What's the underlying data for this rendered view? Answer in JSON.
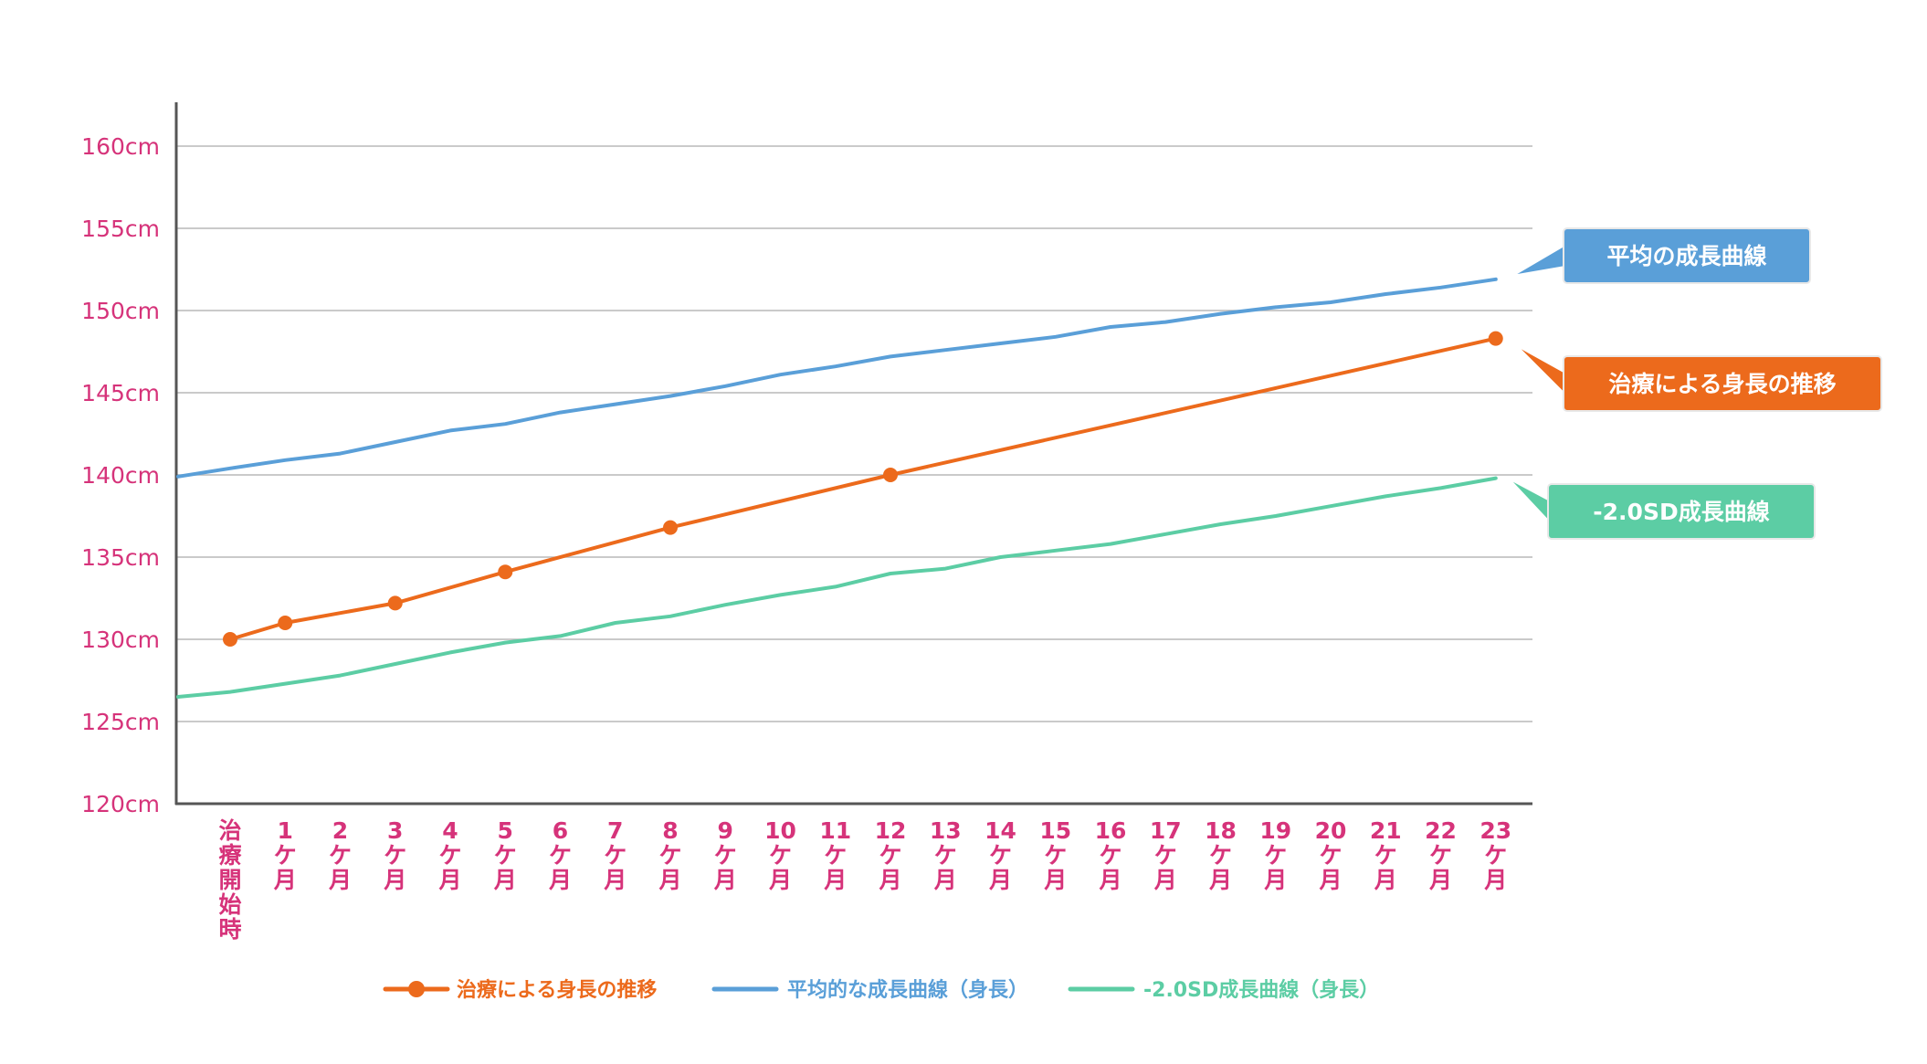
{
  "colors": {
    "treatment": "#ec6a1c",
    "average": "#5a9fd8",
    "sd": "#5ccda4",
    "tick_text": "#d6337a",
    "grid": "#b9b9b9",
    "axis": "#555555"
  },
  "chart_data": {
    "type": "line",
    "ylim": [
      120,
      160
    ],
    "y_ticks": [
      120,
      125,
      130,
      135,
      140,
      145,
      150,
      155,
      160
    ],
    "y_tick_labels": [
      "120cm",
      "125cm",
      "130cm",
      "135cm",
      "140cm",
      "145cm",
      "150cm",
      "155cm",
      "160cm"
    ],
    "x_labels": [
      "治療開始時",
      "1ケ月",
      "2ケ月",
      "3ケ月",
      "4ケ月",
      "5ケ月",
      "6ケ月",
      "7ケ月",
      "8ケ月",
      "9ケ月",
      "10ケ月",
      "11ケ月",
      "12ケ月",
      "13ケ月",
      "14ケ月",
      "15ケ月",
      "16ケ月",
      "17ケ月",
      "18ケ月",
      "19ケ月",
      "20ケ月",
      "21ケ月",
      "22ケ月",
      "23ケ月"
    ],
    "grid": true,
    "series": [
      {
        "name": "治療による身長の推移",
        "key": "treatment",
        "markers": true,
        "points": [
          [
            0,
            130.0
          ],
          [
            1,
            131.0
          ],
          [
            3,
            132.2
          ],
          [
            5,
            134.1
          ],
          [
            8,
            136.8
          ],
          [
            12,
            140.0
          ],
          [
            23,
            148.3
          ]
        ]
      },
      {
        "name": "平均的な成長曲線（身長）",
        "key": "average",
        "markers": false,
        "points": [
          [
            -1,
            139.9
          ],
          [
            0,
            140.4
          ],
          [
            1,
            140.9
          ],
          [
            2,
            141.3
          ],
          [
            3,
            142.0
          ],
          [
            4,
            142.7
          ],
          [
            5,
            143.1
          ],
          [
            6,
            143.8
          ],
          [
            7,
            144.3
          ],
          [
            8,
            144.8
          ],
          [
            9,
            145.4
          ],
          [
            10,
            146.1
          ],
          [
            11,
            146.6
          ],
          [
            12,
            147.2
          ],
          [
            13,
            147.6
          ],
          [
            14,
            148.0
          ],
          [
            15,
            148.4
          ],
          [
            16,
            149.0
          ],
          [
            17,
            149.3
          ],
          [
            18,
            149.8
          ],
          [
            19,
            150.2
          ],
          [
            20,
            150.5
          ],
          [
            21,
            151.0
          ],
          [
            22,
            151.4
          ],
          [
            23,
            151.9
          ]
        ]
      },
      {
        "name": "-2.0SD成長曲線（身長）",
        "key": "sd",
        "markers": false,
        "points": [
          [
            -1,
            126.5
          ],
          [
            0,
            126.8
          ],
          [
            1,
            127.3
          ],
          [
            2,
            127.8
          ],
          [
            3,
            128.5
          ],
          [
            4,
            129.2
          ],
          [
            5,
            129.8
          ],
          [
            6,
            130.2
          ],
          [
            7,
            131.0
          ],
          [
            8,
            131.4
          ],
          [
            9,
            132.1
          ],
          [
            10,
            132.7
          ],
          [
            11,
            133.2
          ],
          [
            12,
            134.0
          ],
          [
            13,
            134.3
          ],
          [
            14,
            135.0
          ],
          [
            15,
            135.4
          ],
          [
            16,
            135.8
          ],
          [
            17,
            136.4
          ],
          [
            18,
            137.0
          ],
          [
            19,
            137.5
          ],
          [
            20,
            138.1
          ],
          [
            21,
            138.7
          ],
          [
            22,
            139.2
          ],
          [
            23,
            139.8
          ]
        ]
      }
    ],
    "callouts": [
      {
        "text": "平均の成長曲線",
        "key": "average"
      },
      {
        "text": "治療による身長の推移",
        "key": "treatment"
      },
      {
        "text": "-2.0SD成長曲線",
        "key": "sd"
      }
    ],
    "legend": {
      "placement": "bottom",
      "items": [
        {
          "text": "治療による身長の推移",
          "key": "treatment"
        },
        {
          "text": "平均的な成長曲線（身長）",
          "key": "average"
        },
        {
          "text": "-2.0SD成長曲線（身長）",
          "key": "sd"
        }
      ]
    }
  }
}
